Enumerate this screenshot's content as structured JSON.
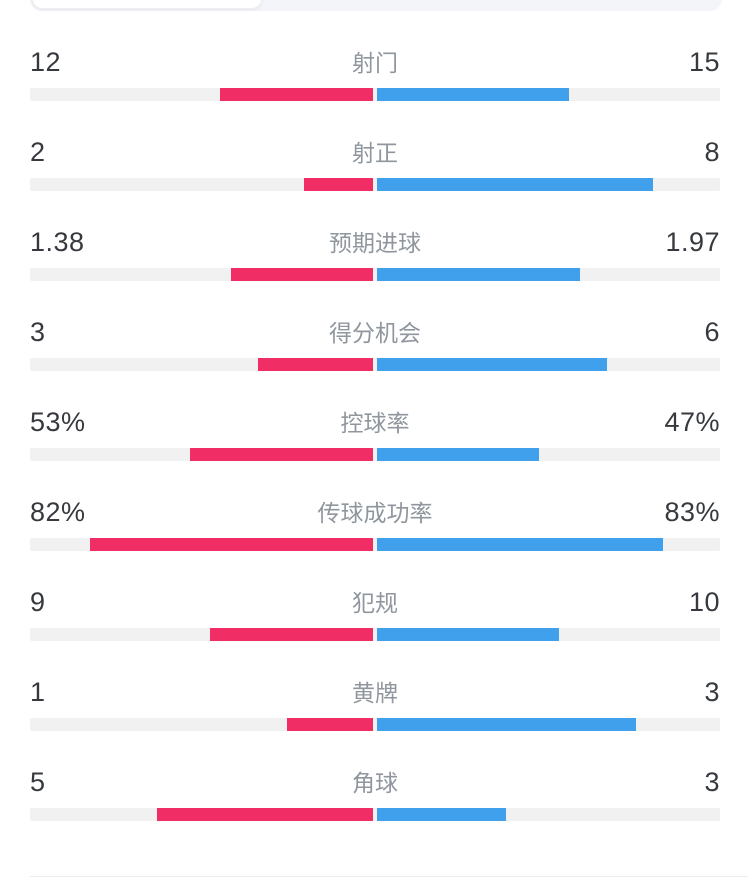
{
  "colors": {
    "home_bar": "#F02D64",
    "away_bar": "#41A0EB",
    "bar_track": "#F1F1F2",
    "value_text": "#36393D",
    "label_text": "#8F969D",
    "segment_bg": "#F3F5F8",
    "segment_selected_bg": "#FFFFFF",
    "divider": "#ECECEC"
  },
  "chart_data": {
    "type": "bar",
    "layout": "mirrored-horizontal-head-to-head",
    "legend_position": "none",
    "grid": false,
    "series": [
      {
        "name": "home",
        "side": "left",
        "color": "#F02D64"
      },
      {
        "name": "away",
        "side": "right",
        "color": "#41A0EB"
      }
    ],
    "rows": [
      {
        "label": "射门",
        "home": "12",
        "away": "15"
      },
      {
        "label": "射正",
        "home": "2",
        "away": "8"
      },
      {
        "label": "预期进球",
        "home": "1.38",
        "away": "1.97"
      },
      {
        "label": "得分机会",
        "home": "3",
        "away": "6"
      },
      {
        "label": "控球率",
        "home": "53%",
        "away": "47%"
      },
      {
        "label": "传球成功率",
        "home": "82%",
        "away": "83%"
      },
      {
        "label": "犯规",
        "home": "9",
        "away": "10"
      },
      {
        "label": "黄牌",
        "home": "1",
        "away": "3"
      },
      {
        "label": "角球",
        "home": "5",
        "away": "3"
      }
    ],
    "bar_scale_rule": "percent values use value/100 of half-track; count values use value/(home+away) of half-track"
  }
}
